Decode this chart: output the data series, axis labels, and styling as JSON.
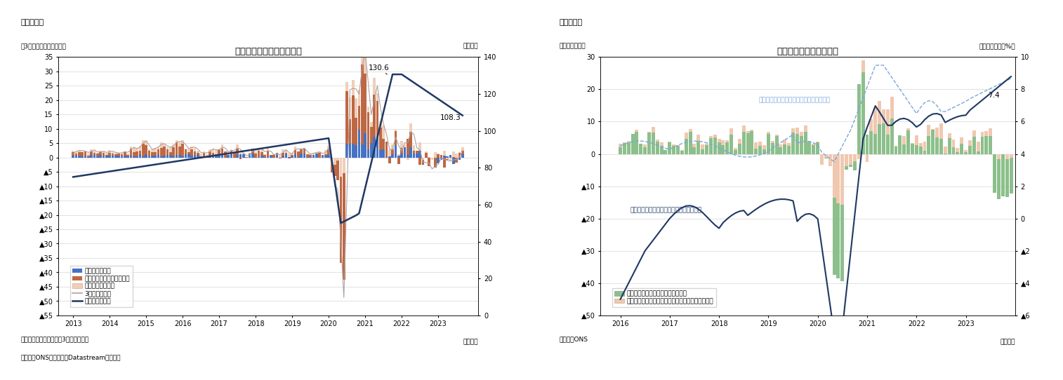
{
  "fig3": {
    "title": "求人数の変化（要因分解）",
    "fig_label": "（図表３）",
    "ylabel_left": "（3か月前との差、万人）",
    "ylabel_right": "（万件）",
    "xlabel": "（月次）",
    "note1": "（注）季節調整値、後方3か月移動平均",
    "note2": "（資料）ONSのデータをDatastreamより取得",
    "ylim_left": [
      -55,
      35
    ],
    "ylim_right": [
      0,
      140
    ],
    "ann_130": "130.6",
    "ann_108": "108.3",
    "leg_non_service": "サービス業以外",
    "leg_hosp": "居住・飲食・芸術・娯楽業",
    "leg_other": "その他サービス業",
    "leg_diff": "）3か月前との差",
    "leg_vac": "―求人数（右軸）",
    "color_non_service": "#4472C4",
    "color_hosp": "#BE6843",
    "color_other": "#F0CEB8",
    "color_diff": "#B0A0A0",
    "color_vac": "#1F3864"
  },
  "fig4": {
    "title": "給与取得者データの推移",
    "fig_label": "（図表４）",
    "ylabel_left": "（件数、万件）",
    "ylabel_right": "（前年同期比、%）",
    "xlabel": "（月次）",
    "note": "（資料）ONS",
    "ylim_left": [
      -50,
      30
    ],
    "ylim_right": [
      -6,
      10
    ],
    "ann_74": "7.4",
    "ann_mean": "月あたり給与（平均値）の伸び率（右軸）",
    "ann_median": "月あたり給与（中央値）の伸び率（右軸）",
    "leg_other": "給与所得者の前月差（その他産業）",
    "leg_hosp": "給与所得者の前月差（居住・飲食・芸術・娯楽業）",
    "color_other": "#8CBF8C",
    "color_hosp": "#F0C8B0",
    "color_mean": "#7BA7D8",
    "color_median": "#1F3864"
  }
}
